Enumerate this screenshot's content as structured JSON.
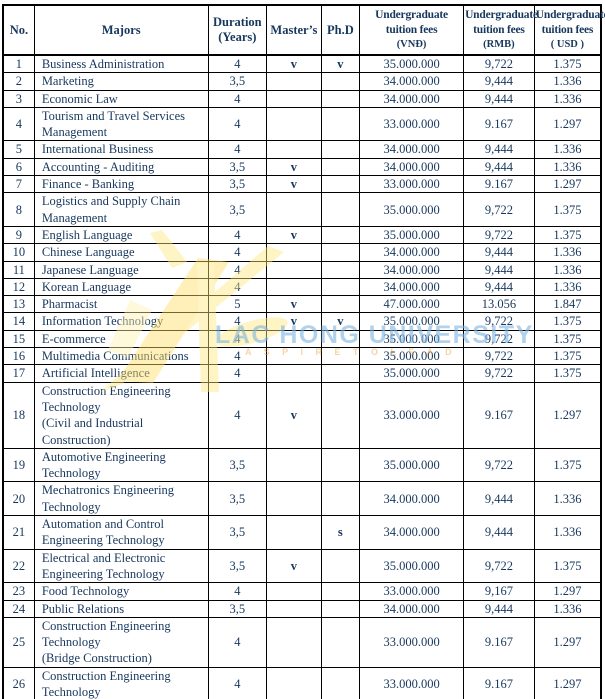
{
  "watermark": {
    "text": "LAC HONG UNIVERSITY",
    "subtext": "A S P I R E   T O   L E A D",
    "text_color": "#7db4e1",
    "logo_color": "#ffe87c"
  },
  "colors": {
    "text": "#17375d",
    "border": "#000000",
    "background": "#ffffff"
  },
  "table": {
    "columns": [
      {
        "key": "no",
        "label": "No."
      },
      {
        "key": "major",
        "label": "Majors"
      },
      {
        "key": "duration",
        "label": "Duration\n(Years)"
      },
      {
        "key": "masters",
        "label": "Master’s"
      },
      {
        "key": "phd",
        "label": "Ph.D"
      },
      {
        "key": "vnd",
        "label": "Undergraduate\ntuition fees",
        "sub": "(VNĐ)"
      },
      {
        "key": "rmb",
        "label": "Undergraduate\ntuition fees",
        "sub": "(RMB)"
      },
      {
        "key": "usd",
        "label": "Undergraduate\ntuition fees",
        "sub": "( USD )"
      }
    ],
    "rows": [
      {
        "no": "1",
        "major": "Business Administration",
        "duration": "4",
        "masters": "v",
        "phd": "v",
        "vnd": "35.000.000",
        "rmb": "9,722",
        "usd": "1.375"
      },
      {
        "no": "2",
        "major": "Marketing",
        "duration": "3,5",
        "masters": "",
        "phd": "",
        "vnd": "34.000.000",
        "rmb": "9,444",
        "usd": "1.336"
      },
      {
        "no": "3",
        "major": "Economic Law",
        "duration": "4",
        "masters": "",
        "phd": "",
        "vnd": "34.000.000",
        "rmb": "9,444",
        "usd": "1.336"
      },
      {
        "no": "4",
        "major": "Tourism and Travel Services\nManagement",
        "duration": "4",
        "masters": "",
        "phd": "",
        "vnd": "33.000.000",
        "rmb": "9.167",
        "usd": "1.297"
      },
      {
        "no": "5",
        "major": "International Business",
        "duration": "4",
        "masters": "",
        "phd": "",
        "vnd": "34.000.000",
        "rmb": "9,444",
        "usd": "1.336"
      },
      {
        "no": "6",
        "major": "Accounting - Auditing",
        "duration": "3,5",
        "masters": "v",
        "phd": "",
        "vnd": "34.000.000",
        "rmb": "9,444",
        "usd": "1.336"
      },
      {
        "no": "7",
        "major": "Finance - Banking",
        "duration": "3,5",
        "masters": "v",
        "phd": "",
        "vnd": "33.000.000",
        "rmb": "9.167",
        "usd": "1.297"
      },
      {
        "no": "8",
        "major": "Logistics and Supply Chain\nManagement",
        "duration": "3,5",
        "masters": "",
        "phd": "",
        "vnd": "35.000.000",
        "rmb": "9,722",
        "usd": "1.375"
      },
      {
        "no": "9",
        "major": "English Language",
        "duration": "4",
        "masters": "v",
        "phd": "",
        "vnd": "35.000.000",
        "rmb": "9,722",
        "usd": "1.375"
      },
      {
        "no": "10",
        "major": "Chinese Language",
        "duration": "4",
        "masters": "",
        "phd": "",
        "vnd": "34.000.000",
        "rmb": "9,444",
        "usd": "1.336"
      },
      {
        "no": "11",
        "major": "Japanese Language",
        "duration": "4",
        "masters": "",
        "phd": "",
        "vnd": "34.000.000",
        "rmb": "9,444",
        "usd": "1.336"
      },
      {
        "no": "12",
        "major": "Korean Language",
        "duration": "4",
        "masters": "",
        "phd": "",
        "vnd": "34.000.000",
        "rmb": "9,444",
        "usd": "1.336"
      },
      {
        "no": "13",
        "major": "Pharmacist",
        "duration": "5",
        "masters": "v",
        "phd": "",
        "vnd": "47.000.000",
        "rmb": "13.056",
        "usd": "1.847"
      },
      {
        "no": "14",
        "major": "Information Technology",
        "duration": "4",
        "masters": "v",
        "phd": "v",
        "vnd": "35.000.000",
        "rmb": "9,722",
        "usd": "1.375"
      },
      {
        "no": "15",
        "major": "E-commerce",
        "duration": "4",
        "masters": "",
        "phd": "",
        "vnd": "35.000.000",
        "rmb": "9,722",
        "usd": "1.375"
      },
      {
        "no": "16",
        "major": "Multimedia Communications",
        "duration": "4",
        "masters": "",
        "phd": "",
        "vnd": "35.000.000",
        "rmb": "9,722",
        "usd": "1.375"
      },
      {
        "no": "17",
        "major": "Artificial Intelligence",
        "duration": "4",
        "masters": "",
        "phd": "",
        "vnd": "35.000.000",
        "rmb": "9,722",
        "usd": "1.375"
      },
      {
        "no": "18",
        "major": "Construction Engineering\nTechnology\n(Civil and Industrial\nConstruction)",
        "duration": "4",
        "masters": "v",
        "phd": "",
        "vnd": "33.000.000",
        "rmb": "9.167",
        "usd": "1.297"
      },
      {
        "no": "19",
        "major": "Automotive Engineering\nTechnology",
        "duration": "3,5",
        "masters": "",
        "phd": "",
        "vnd": "35.000.000",
        "rmb": "9,722",
        "usd": "1.375"
      },
      {
        "no": "20",
        "major": "Mechatronics Engineering\nTechnology",
        "duration": "3,5",
        "masters": "",
        "phd": "",
        "vnd": "34.000.000",
        "rmb": "9,444",
        "usd": "1.336"
      },
      {
        "no": "21",
        "major": "Automation and Control\nEngineering Technology",
        "duration": "3,5",
        "masters": "",
        "phd": "s",
        "vnd": "34.000.000",
        "rmb": "9,444",
        "usd": "1.336"
      },
      {
        "no": "22",
        "major": "Electrical and Electronic\nEngineering Technology",
        "duration": "3,5",
        "masters": "v",
        "phd": "",
        "vnd": "35.000.000",
        "rmb": "9,722",
        "usd": "1.375"
      },
      {
        "no": "23",
        "major": "Food Technology",
        "duration": "4",
        "masters": "",
        "phd": "",
        "vnd": "33.000.000",
        "rmb": "9,167",
        "usd": "1.297"
      },
      {
        "no": "24",
        "major": "Public Relations",
        "duration": "3,5",
        "masters": "",
        "phd": "",
        "vnd": "34.000.000",
        "rmb": "9,444",
        "usd": "1.336"
      },
      {
        "no": "25",
        "major": "Construction Engineering\nTechnology\n(Bridge Construction)",
        "duration": "4",
        "masters": "",
        "phd": "",
        "vnd": "33.000.000",
        "rmb": "9.167",
        "usd": "1.297"
      },
      {
        "no": "26",
        "major": "Construction Engineering\nTechnology",
        "duration": "4",
        "masters": "",
        "phd": "",
        "vnd": "33.000.000",
        "rmb": "9.167",
        "usd": "1.297"
      }
    ]
  }
}
